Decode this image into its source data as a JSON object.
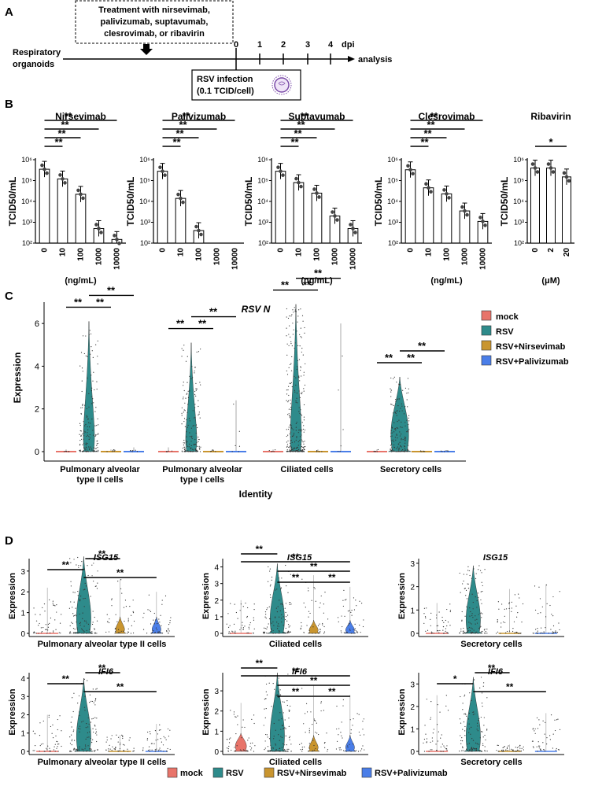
{
  "panel_labels": {
    "a": "A",
    "b": "B",
    "c": "C",
    "d": "D"
  },
  "timeline": {
    "treatment_lines": [
      "Treatment with nirsevimab,",
      "palivizumab, suptavumab,",
      "clesrovimab, or ribavirin"
    ],
    "start_label_lines": [
      "Respiratory",
      "organoids"
    ],
    "days": [
      "0",
      "1",
      "2",
      "3",
      "4"
    ],
    "dpi_label": "dpi",
    "analysis_label": "analysis",
    "infection_lines": [
      "RSV infection",
      "(0.1 TCID/cell)"
    ]
  },
  "colors": {
    "mock": "#e8746a",
    "rsv": "#2e8b8b",
    "nirsevimab": "#c9952f",
    "palivizumab": "#4a7ee8"
  },
  "chart_data": [
    {
      "type": "bar",
      "id": "nirsevimab",
      "title": "Nirsevimab",
      "ylabel": "TCID50/mL",
      "xlabel": "(ng/mL)",
      "yscale": "log",
      "ylim": [
        100,
        1000000
      ],
      "yticks": [
        "10²",
        "10³",
        "10⁴",
        "10⁵",
        "10⁶"
      ],
      "categories": [
        "0",
        "10",
        "100",
        "1000",
        "10000"
      ],
      "values": [
        350000,
        120000,
        22000,
        500,
        150
      ],
      "sig": [
        "**",
        "**",
        "**",
        "**"
      ]
    },
    {
      "type": "bar",
      "id": "palivizumab",
      "title": "Palivizumab",
      "ylabel": "TCID50/mL",
      "xlabel": "",
      "yscale": "log",
      "ylim": [
        100,
        1000000
      ],
      "yticks": [
        "10²",
        "10³",
        "10⁴",
        "10⁵",
        "10⁶"
      ],
      "categories": [
        "0",
        "10",
        "100",
        "1000",
        "10000"
      ],
      "values": [
        280000,
        14000,
        400,
        null,
        null
      ],
      "sig": [
        "**",
        "**",
        "**",
        "**"
      ]
    },
    {
      "type": "bar",
      "id": "suptavumab",
      "title": "Suptavumab",
      "ylabel": "TCID50/mL",
      "xlabel": "(ng/mL)",
      "yscale": "log",
      "ylim": [
        100,
        1000000
      ],
      "yticks": [
        "10²",
        "10³",
        "10⁴",
        "10⁵",
        "10⁶"
      ],
      "categories": [
        "0",
        "10",
        "100",
        "1000",
        "10000"
      ],
      "values": [
        280000,
        80000,
        25000,
        2000,
        500
      ],
      "sig": [
        "**",
        "**",
        "**",
        "**"
      ]
    },
    {
      "type": "bar",
      "id": "clesrovimab",
      "title": "Clesrovimab",
      "ylabel": "TCID50/mL",
      "xlabel": "(ng/mL)",
      "yscale": "log",
      "ylim": [
        100,
        1000000
      ],
      "yticks": [
        "10²",
        "10³",
        "10⁴",
        "10⁵",
        "10⁶"
      ],
      "categories": [
        "0",
        "10",
        "100",
        "1000",
        "10000"
      ],
      "values": [
        330000,
        45000,
        23000,
        3500,
        1100
      ],
      "sig": [
        "**",
        "**",
        "**",
        "**"
      ]
    },
    {
      "type": "bar",
      "id": "ribavirin",
      "title": "Ribavirin",
      "ylabel": "TCID50/mL",
      "xlabel": "(μM)",
      "yscale": "log",
      "ylim": [
        100,
        1000000
      ],
      "yticks": [
        "10²",
        "10³",
        "10⁴",
        "10⁵",
        "10⁶"
      ],
      "categories": [
        "0",
        "2",
        "20"
      ],
      "values": [
        400000,
        400000,
        150000
      ],
      "sig": [
        "*"
      ]
    },
    {
      "type": "violin",
      "id": "panel-c",
      "title": "RSV N",
      "ylabel": "Expression",
      "xlabel": "Identity",
      "ylim": [
        0,
        7
      ],
      "yticks": [
        "0",
        "2",
        "4",
        "6"
      ],
      "categories": [
        [
          "Pulmonary alveolar",
          "type II cells"
        ],
        [
          "Pulmonary alveolar",
          "type I cells"
        ],
        [
          "Ciliated cells"
        ],
        [
          "Secretory cells"
        ]
      ],
      "legend": [
        "mock",
        "RSV",
        "RSV+Nirsevimab",
        "RSV+Palivizumab"
      ],
      "max_values": [
        [
          0.1,
          6.1,
          0.1,
          0.2
        ],
        [
          0.2,
          5.1,
          0.1,
          2.4
        ],
        [
          0.1,
          6.9,
          0.1,
          6.0
        ],
        [
          0.1,
          3.5,
          0.05,
          0.05
        ]
      ],
      "sig": [
        "**",
        "**",
        "**"
      ]
    },
    {
      "type": "violin",
      "id": "isg15-at2",
      "title": "ISG15",
      "ylabel": "Expression",
      "xlabel": "Pulmonary alveolar type II cells",
      "ylim": [
        0,
        3.6
      ],
      "yticks": [
        "0",
        "1",
        "2",
        "3"
      ],
      "max_values": [
        2.2,
        3.7,
        2.6,
        2.0
      ],
      "sig": [
        "**",
        "**",
        "**"
      ]
    },
    {
      "type": "violin",
      "id": "isg15-cil",
      "title": "ISG15",
      "ylabel": "Expression",
      "xlabel": "Ciliated cells",
      "ylim": [
        0,
        4.5
      ],
      "yticks": [
        "0",
        "1",
        "2",
        "3",
        "4"
      ],
      "max_values": [
        2.0,
        4.2,
        3.5,
        2.8
      ],
      "sig": [
        "**",
        "**",
        "**",
        "**",
        "**"
      ]
    },
    {
      "type": "violin",
      "id": "isg15-sec",
      "title": "ISG15",
      "ylabel": "Expression",
      "xlabel": "Secretory cells",
      "ylim": [
        0,
        3.2
      ],
      "yticks": [
        "0",
        "1",
        "2",
        "3"
      ],
      "max_values": [
        1.3,
        2.9,
        1.9,
        2.1
      ],
      "sig": []
    },
    {
      "type": "violin",
      "id": "ifi6-at2",
      "title": "IFI6",
      "ylabel": "Expression",
      "xlabel": "Pulmonary alveolar type II cells",
      "ylim": [
        0,
        4.3
      ],
      "yticks": [
        "0",
        "1",
        "2",
        "3",
        "4"
      ],
      "max_values": [
        2.0,
        4.0,
        0.9,
        1.5
      ],
      "sig": [
        "**",
        "**",
        "**"
      ]
    },
    {
      "type": "violin",
      "id": "ifi6-cil",
      "title": "IFI6",
      "ylabel": "Expression",
      "xlabel": "Ciliated cells",
      "ylim": [
        0,
        3.9
      ],
      "yticks": [
        "0",
        "1",
        "2",
        "3"
      ],
      "max_values": [
        2.4,
        3.9,
        3.3,
        2.8
      ],
      "sig": [
        "**",
        "**",
        "**",
        "**",
        "**"
      ]
    },
    {
      "type": "violin",
      "id": "ifi6-sec",
      "title": "IFI6",
      "ylabel": "Expression",
      "xlabel": "Secretory cells",
      "ylim": [
        0,
        3.5
      ],
      "yticks": [
        "0",
        "1",
        "2",
        "3"
      ],
      "max_values": [
        2.5,
        3.3,
        0.3,
        1.7
      ],
      "sig": [
        "*",
        "**",
        "**"
      ]
    }
  ],
  "legend_bottom": [
    "mock",
    "RSV",
    "RSV+Nirsevimab",
    "RSV+Palivizumab"
  ]
}
